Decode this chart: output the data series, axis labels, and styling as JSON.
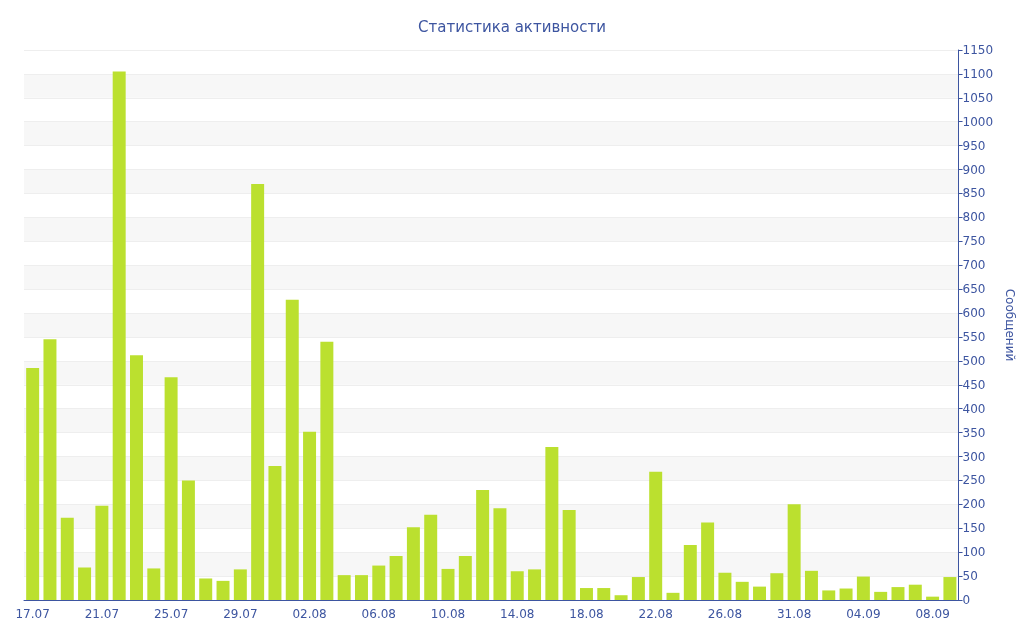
{
  "chart_data": {
    "type": "bar",
    "title": "Статистика активности",
    "ylabel": "Сообщений",
    "categories": [
      "17.07",
      null,
      null,
      null,
      "21.07",
      null,
      null,
      null,
      "25.07",
      null,
      null,
      null,
      "29.07",
      null,
      null,
      null,
      "02.08",
      null,
      null,
      null,
      "06.08",
      null,
      null,
      null,
      "10.08",
      null,
      null,
      null,
      "14.08",
      null,
      null,
      null,
      "18.08",
      null,
      null,
      null,
      "22.08",
      null,
      null,
      null,
      "26.08",
      null,
      null,
      null,
      "31.08",
      null,
      null,
      null,
      "04.09",
      null,
      null,
      null,
      "08.09",
      null
    ],
    "values": [
      485,
      545,
      172,
      68,
      197,
      1105,
      512,
      66,
      466,
      250,
      45,
      40,
      64,
      870,
      280,
      628,
      352,
      540,
      52,
      52,
      72,
      92,
      152,
      178,
      65,
      92,
      230,
      192,
      60,
      64,
      320,
      188,
      25,
      25,
      10,
      48,
      268,
      15,
      115,
      162,
      57,
      38,
      28,
      56,
      200,
      61,
      20,
      24,
      49,
      17,
      27,
      32,
      7,
      48
    ],
    "color": "#bbe02f",
    "ylim": [
      0,
      1150
    ],
    "yticks": [
      0,
      50,
      100,
      150,
      200,
      250,
      300,
      350,
      400,
      450,
      500,
      550,
      600,
      650,
      700,
      750,
      800,
      850,
      900,
      950,
      1000,
      1050,
      1100,
      1150
    ],
    "grid": "y"
  }
}
